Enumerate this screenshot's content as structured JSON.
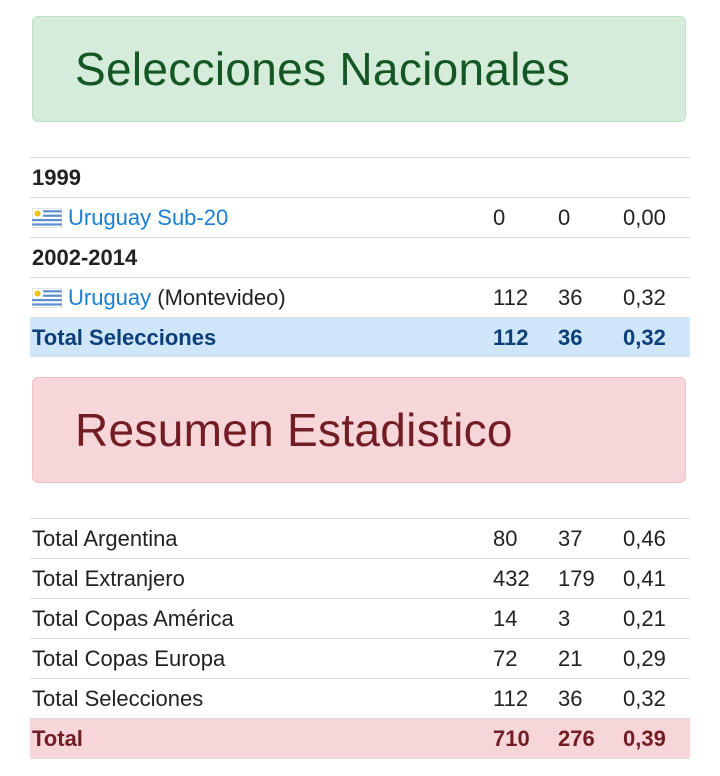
{
  "nacionales": {
    "title": "Selecciones Nacionales",
    "rows": [
      {
        "type": "year",
        "label": "1999"
      },
      {
        "type": "team",
        "team": "Uruguay Sub-20",
        "note": "",
        "a": "0",
        "b": "0",
        "c": "0,00",
        "flag_icon": "uruguay-flag-icon"
      },
      {
        "type": "year",
        "label": "2002-2014"
      },
      {
        "type": "team",
        "team": "Uruguay",
        "note": "(Montevideo)",
        "a": "112",
        "b": "36",
        "c": "0,32",
        "flag_icon": "uruguay-flag-icon"
      }
    ],
    "total": {
      "label": "Total Selecciones",
      "a": "112",
      "b": "36",
      "c": "0,32"
    }
  },
  "resumen": {
    "title": "Resumen Estadistico",
    "rows": [
      {
        "label": "Total Argentina",
        "a": "80",
        "b": "37",
        "c": "0,46"
      },
      {
        "label": "Total Extranjero",
        "a": "432",
        "b": "179",
        "c": "0,41"
      },
      {
        "label": "Total Copas América",
        "a": "14",
        "b": "3",
        "c": "0,21"
      },
      {
        "label": "Total Copas Europa",
        "a": "72",
        "b": "21",
        "c": "0,29"
      },
      {
        "label": "Total Selecciones",
        "a": "112",
        "b": "36",
        "c": "0,32"
      }
    ],
    "total": {
      "label": "Total",
      "a": "710",
      "b": "276",
      "c": "0,39"
    }
  },
  "colors": {
    "link": "#1a7fd4",
    "green_banner": "#d4ecd9",
    "red_banner": "#f7d6da",
    "blue_total": "#cfe5f8"
  }
}
